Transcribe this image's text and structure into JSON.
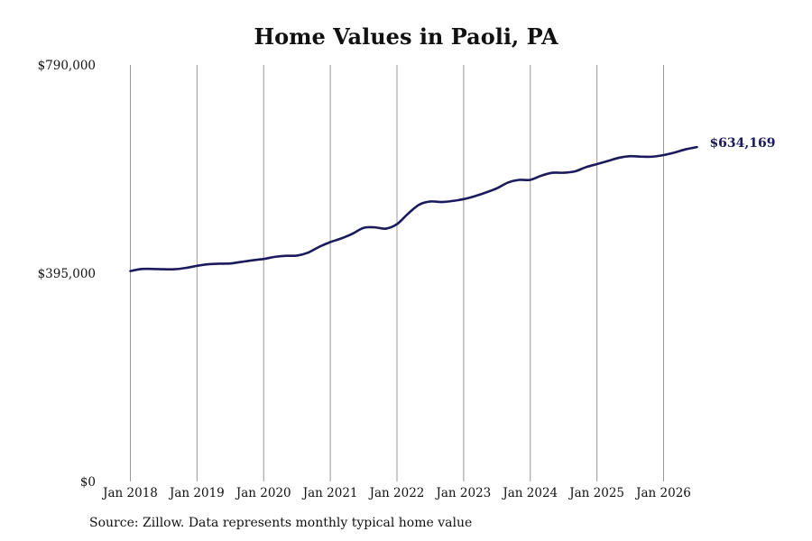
{
  "chart_data": {
    "type": "line",
    "title": "Home Values in Paoli, PA",
    "xlabel": "",
    "ylabel": "",
    "ylim": [
      0,
      790000
    ],
    "y_ticks": [
      0,
      395000,
      790000
    ],
    "y_tick_labels": [
      "$0",
      "$395,000",
      "$790,000"
    ],
    "x_ticks": [
      "2018-01",
      "2019-01",
      "2020-01",
      "2021-01",
      "2022-01",
      "2023-01",
      "2024-01",
      "2025-01",
      "2026-01"
    ],
    "x_tick_labels": [
      "Jan 2018",
      "Jan 2019",
      "Jan 2020",
      "Jan 2021",
      "Jan 2022",
      "Jan 2023",
      "Jan 2024",
      "Jan 2025",
      "Jan 2026"
    ],
    "grid": "vertical",
    "line_color": "#1a1a5c",
    "series": [
      {
        "points": [
          [
            "2018-01",
            399000
          ],
          [
            "2018-03",
            403000
          ],
          [
            "2018-05",
            403000
          ],
          [
            "2018-07",
            402500
          ],
          [
            "2018-09",
            402500
          ],
          [
            "2018-11",
            405000
          ],
          [
            "2019-01",
            409000
          ],
          [
            "2019-03",
            412000
          ],
          [
            "2019-05",
            413000
          ],
          [
            "2019-07",
            413500
          ],
          [
            "2019-09",
            416500
          ],
          [
            "2019-11",
            419500
          ],
          [
            "2020-01",
            422000
          ],
          [
            "2020-03",
            426000
          ],
          [
            "2020-05",
            428000
          ],
          [
            "2020-07",
            428500
          ],
          [
            "2020-09",
            434000
          ],
          [
            "2020-11",
            445000
          ],
          [
            "2021-01",
            454000
          ],
          [
            "2021-03",
            461000
          ],
          [
            "2021-05",
            470000
          ],
          [
            "2021-07",
            481000
          ],
          [
            "2021-09",
            482000
          ],
          [
            "2021-11",
            479500
          ],
          [
            "2022-01",
            488000
          ],
          [
            "2022-03",
            508000
          ],
          [
            "2022-05",
            525000
          ],
          [
            "2022-07",
            531000
          ],
          [
            "2022-09",
            530000
          ],
          [
            "2022-11",
            532000
          ],
          [
            "2023-01",
            535500
          ],
          [
            "2023-03",
            541000
          ],
          [
            "2023-05",
            548000
          ],
          [
            "2023-07",
            556000
          ],
          [
            "2023-09",
            567000
          ],
          [
            "2023-11",
            572000
          ],
          [
            "2024-01",
            572000
          ],
          [
            "2024-03",
            580000
          ],
          [
            "2024-05",
            585500
          ],
          [
            "2024-07",
            585500
          ],
          [
            "2024-09",
            588000
          ],
          [
            "2024-11",
            596000
          ],
          [
            "2025-01",
            602000
          ],
          [
            "2025-03",
            608000
          ],
          [
            "2025-05",
            614000
          ],
          [
            "2025-07",
            617000
          ],
          [
            "2025-09",
            616000
          ],
          [
            "2025-11",
            616000
          ],
          [
            "2026-01",
            619000
          ],
          [
            "2026-03",
            624000
          ],
          [
            "2026-05",
            630000
          ],
          [
            "2026-07",
            634169
          ]
        ]
      }
    ],
    "end_label": "$634,169"
  },
  "source_note": "Source: Zillow. Data represents monthly typical home value"
}
